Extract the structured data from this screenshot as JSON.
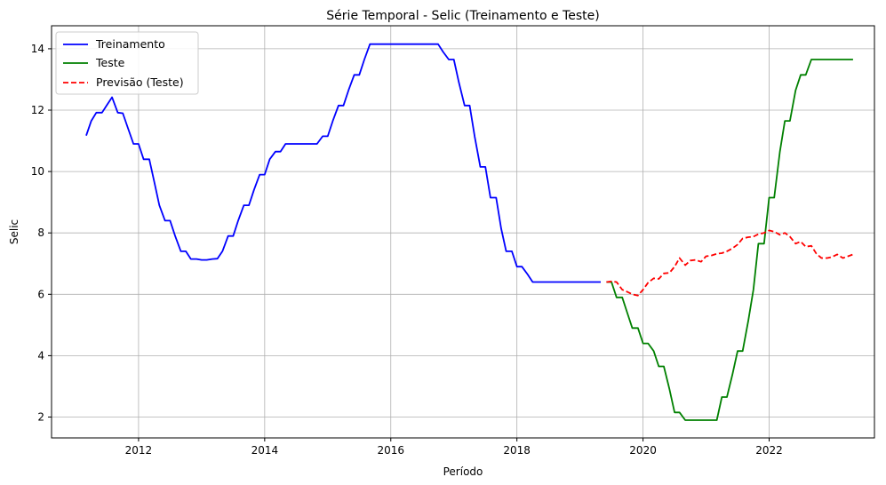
{
  "chart_data": {
    "type": "line",
    "title": "Série Temporal - Selic (Treinamento e Teste)",
    "xlabel": "Período",
    "ylabel": "Selic",
    "xlim": [
      2010.62,
      2023.67
    ],
    "ylim": [
      1.32,
      14.75
    ],
    "xticks": [
      2012,
      2014,
      2016,
      2018,
      2020,
      2022
    ],
    "yticks": [
      2,
      4,
      6,
      8,
      10,
      12,
      14
    ],
    "grid": true,
    "legend_position": "top-left",
    "series": [
      {
        "name": "Treinamento",
        "color": "#0000ff",
        "dash": "solid",
        "points": [
          [
            2011.17,
            11.17
          ],
          [
            2011.25,
            11.65
          ],
          [
            2011.33,
            11.92
          ],
          [
            2011.42,
            11.92
          ],
          [
            2011.5,
            12.17
          ],
          [
            2011.58,
            12.42
          ],
          [
            2011.67,
            11.92
          ],
          [
            2011.75,
            11.9
          ],
          [
            2011.83,
            11.42
          ],
          [
            2011.92,
            10.9
          ],
          [
            2012.0,
            10.9
          ],
          [
            2012.08,
            10.4
          ],
          [
            2012.17,
            10.4
          ],
          [
            2012.25,
            9.65
          ],
          [
            2012.33,
            8.9
          ],
          [
            2012.42,
            8.4
          ],
          [
            2012.5,
            8.4
          ],
          [
            2012.58,
            7.9
          ],
          [
            2012.67,
            7.4
          ],
          [
            2012.75,
            7.4
          ],
          [
            2012.83,
            7.15
          ],
          [
            2012.92,
            7.15
          ],
          [
            2013.0,
            7.12
          ],
          [
            2013.08,
            7.12
          ],
          [
            2013.17,
            7.15
          ],
          [
            2013.25,
            7.16
          ],
          [
            2013.33,
            7.4
          ],
          [
            2013.42,
            7.9
          ],
          [
            2013.5,
            7.9
          ],
          [
            2013.58,
            8.4
          ],
          [
            2013.67,
            8.9
          ],
          [
            2013.75,
            8.9
          ],
          [
            2013.83,
            9.4
          ],
          [
            2013.92,
            9.9
          ],
          [
            2014.0,
            9.9
          ],
          [
            2014.08,
            10.4
          ],
          [
            2014.17,
            10.65
          ],
          [
            2014.25,
            10.65
          ],
          [
            2014.33,
            10.9
          ],
          [
            2014.42,
            10.9
          ],
          [
            2014.5,
            10.9
          ],
          [
            2014.58,
            10.9
          ],
          [
            2014.67,
            10.9
          ],
          [
            2014.75,
            10.9
          ],
          [
            2014.83,
            10.9
          ],
          [
            2014.92,
            11.15
          ],
          [
            2015.0,
            11.15
          ],
          [
            2015.08,
            11.65
          ],
          [
            2015.17,
            12.15
          ],
          [
            2015.25,
            12.15
          ],
          [
            2015.33,
            12.65
          ],
          [
            2015.42,
            13.15
          ],
          [
            2015.5,
            13.15
          ],
          [
            2015.58,
            13.65
          ],
          [
            2015.67,
            14.15
          ],
          [
            2015.75,
            14.15
          ],
          [
            2015.83,
            14.15
          ],
          [
            2015.92,
            14.15
          ],
          [
            2016.0,
            14.15
          ],
          [
            2016.08,
            14.15
          ],
          [
            2016.17,
            14.15
          ],
          [
            2016.25,
            14.15
          ],
          [
            2016.33,
            14.15
          ],
          [
            2016.42,
            14.15
          ],
          [
            2016.5,
            14.15
          ],
          [
            2016.58,
            14.15
          ],
          [
            2016.67,
            14.15
          ],
          [
            2016.75,
            14.15
          ],
          [
            2016.83,
            13.9
          ],
          [
            2016.92,
            13.65
          ],
          [
            2017.0,
            13.65
          ],
          [
            2017.08,
            12.9
          ],
          [
            2017.17,
            12.15
          ],
          [
            2017.25,
            12.15
          ],
          [
            2017.33,
            11.15
          ],
          [
            2017.42,
            10.15
          ],
          [
            2017.5,
            10.15
          ],
          [
            2017.58,
            9.15
          ],
          [
            2017.67,
            9.15
          ],
          [
            2017.75,
            8.15
          ],
          [
            2017.83,
            7.4
          ],
          [
            2017.92,
            7.4
          ],
          [
            2018.0,
            6.9
          ],
          [
            2018.08,
            6.9
          ],
          [
            2018.17,
            6.65
          ],
          [
            2018.25,
            6.4
          ],
          [
            2018.33,
            6.4
          ],
          [
            2018.42,
            6.4
          ],
          [
            2018.5,
            6.4
          ],
          [
            2018.58,
            6.4
          ],
          [
            2018.67,
            6.4
          ],
          [
            2018.75,
            6.4
          ],
          [
            2018.83,
            6.4
          ],
          [
            2018.92,
            6.4
          ],
          [
            2019.0,
            6.4
          ],
          [
            2019.08,
            6.4
          ],
          [
            2019.17,
            6.4
          ],
          [
            2019.25,
            6.4
          ],
          [
            2019.33,
            6.4
          ]
        ]
      },
      {
        "name": "Teste",
        "color": "#008000",
        "dash": "solid",
        "points": [
          [
            2019.42,
            6.4
          ],
          [
            2019.5,
            6.4
          ],
          [
            2019.58,
            5.9
          ],
          [
            2019.67,
            5.9
          ],
          [
            2019.75,
            5.4
          ],
          [
            2019.83,
            4.9
          ],
          [
            2019.92,
            4.9
          ],
          [
            2020.0,
            4.4
          ],
          [
            2020.08,
            4.4
          ],
          [
            2020.17,
            4.15
          ],
          [
            2020.25,
            3.65
          ],
          [
            2020.33,
            3.65
          ],
          [
            2020.42,
            2.9
          ],
          [
            2020.5,
            2.15
          ],
          [
            2020.58,
            2.15
          ],
          [
            2020.67,
            1.9
          ],
          [
            2020.75,
            1.9
          ],
          [
            2020.83,
            1.9
          ],
          [
            2020.92,
            1.9
          ],
          [
            2021.0,
            1.9
          ],
          [
            2021.08,
            1.9
          ],
          [
            2021.17,
            1.9
          ],
          [
            2021.25,
            2.65
          ],
          [
            2021.33,
            2.65
          ],
          [
            2021.42,
            3.4
          ],
          [
            2021.5,
            4.15
          ],
          [
            2021.58,
            4.15
          ],
          [
            2021.67,
            5.15
          ],
          [
            2021.75,
            6.15
          ],
          [
            2021.83,
            7.65
          ],
          [
            2021.92,
            7.65
          ],
          [
            2022.0,
            9.15
          ],
          [
            2022.08,
            9.15
          ],
          [
            2022.17,
            10.65
          ],
          [
            2022.25,
            11.65
          ],
          [
            2022.33,
            11.65
          ],
          [
            2022.42,
            12.65
          ],
          [
            2022.5,
            13.15
          ],
          [
            2022.58,
            13.15
          ],
          [
            2022.67,
            13.65
          ],
          [
            2022.75,
            13.65
          ],
          [
            2022.83,
            13.65
          ],
          [
            2022.92,
            13.65
          ],
          [
            2023.0,
            13.65
          ],
          [
            2023.08,
            13.65
          ],
          [
            2023.17,
            13.65
          ],
          [
            2023.25,
            13.65
          ],
          [
            2023.33,
            13.65
          ]
        ]
      },
      {
        "name": "Previsão (Teste)",
        "color": "#ff0000",
        "dash": "dashed",
        "points": [
          [
            2019.42,
            6.4
          ],
          [
            2019.5,
            6.42
          ],
          [
            2019.58,
            6.4
          ],
          [
            2019.67,
            6.15
          ],
          [
            2019.75,
            6.08
          ],
          [
            2019.83,
            6.0
          ],
          [
            2019.92,
            5.96
          ],
          [
            2020.0,
            6.15
          ],
          [
            2020.08,
            6.38
          ],
          [
            2020.17,
            6.52
          ],
          [
            2020.25,
            6.5
          ],
          [
            2020.33,
            6.68
          ],
          [
            2020.42,
            6.7
          ],
          [
            2020.5,
            6.9
          ],
          [
            2020.58,
            7.18
          ],
          [
            2020.67,
            6.95
          ],
          [
            2020.75,
            7.1
          ],
          [
            2020.83,
            7.12
          ],
          [
            2020.92,
            7.06
          ],
          [
            2021.0,
            7.24
          ],
          [
            2021.08,
            7.26
          ],
          [
            2021.17,
            7.32
          ],
          [
            2021.25,
            7.34
          ],
          [
            2021.33,
            7.4
          ],
          [
            2021.42,
            7.5
          ],
          [
            2021.5,
            7.62
          ],
          [
            2021.58,
            7.82
          ],
          [
            2021.67,
            7.86
          ],
          [
            2021.75,
            7.88
          ],
          [
            2021.83,
            7.96
          ],
          [
            2021.92,
            8.0
          ],
          [
            2022.0,
            8.08
          ],
          [
            2022.08,
            8.04
          ],
          [
            2022.17,
            7.94
          ],
          [
            2022.25,
            8.0
          ],
          [
            2022.33,
            7.88
          ],
          [
            2022.42,
            7.65
          ],
          [
            2022.5,
            7.72
          ],
          [
            2022.58,
            7.55
          ],
          [
            2022.67,
            7.58
          ],
          [
            2022.75,
            7.32
          ],
          [
            2022.83,
            7.18
          ],
          [
            2022.92,
            7.18
          ],
          [
            2023.0,
            7.22
          ],
          [
            2023.08,
            7.3
          ],
          [
            2023.17,
            7.18
          ],
          [
            2023.25,
            7.24
          ],
          [
            2023.33,
            7.3
          ]
        ]
      }
    ]
  }
}
